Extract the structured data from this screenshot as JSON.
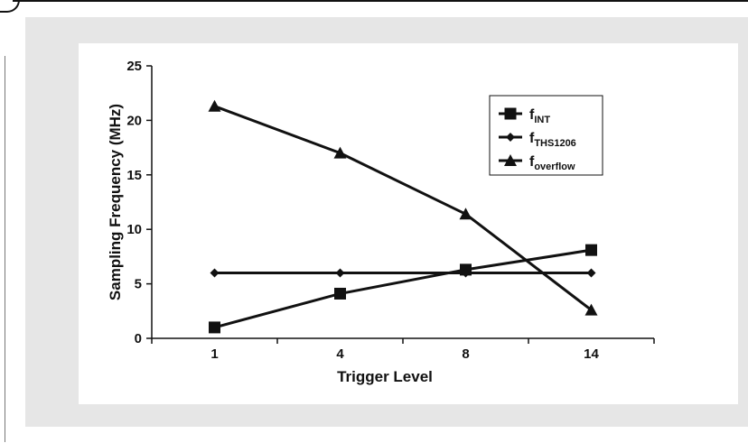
{
  "colors": {
    "panel": "#e6e6e6",
    "plot_bg": "#ffffff",
    "ink": "#111111"
  },
  "chart_data": {
    "type": "line",
    "title": "",
    "xlabel": "Trigger Level",
    "ylabel": "Sampling Frequency (MHz)",
    "categories": [
      "1",
      "4",
      "8",
      "14"
    ],
    "ylim": [
      0,
      25
    ],
    "yticks": [
      0,
      5,
      10,
      15,
      20,
      25
    ],
    "grid": false,
    "legend_position": "top-right",
    "series": [
      {
        "name": "f",
        "sub": "INT",
        "marker": "square",
        "values": [
          1.0,
          4.1,
          6.3,
          8.1
        ]
      },
      {
        "name": "f",
        "sub": "THS1206",
        "marker": "diamond",
        "values": [
          6.0,
          6.0,
          6.0,
          6.0
        ]
      },
      {
        "name": "f",
        "sub": "overflow",
        "marker": "triangle",
        "values": [
          21.3,
          17.0,
          11.4,
          2.6
        ]
      }
    ]
  }
}
